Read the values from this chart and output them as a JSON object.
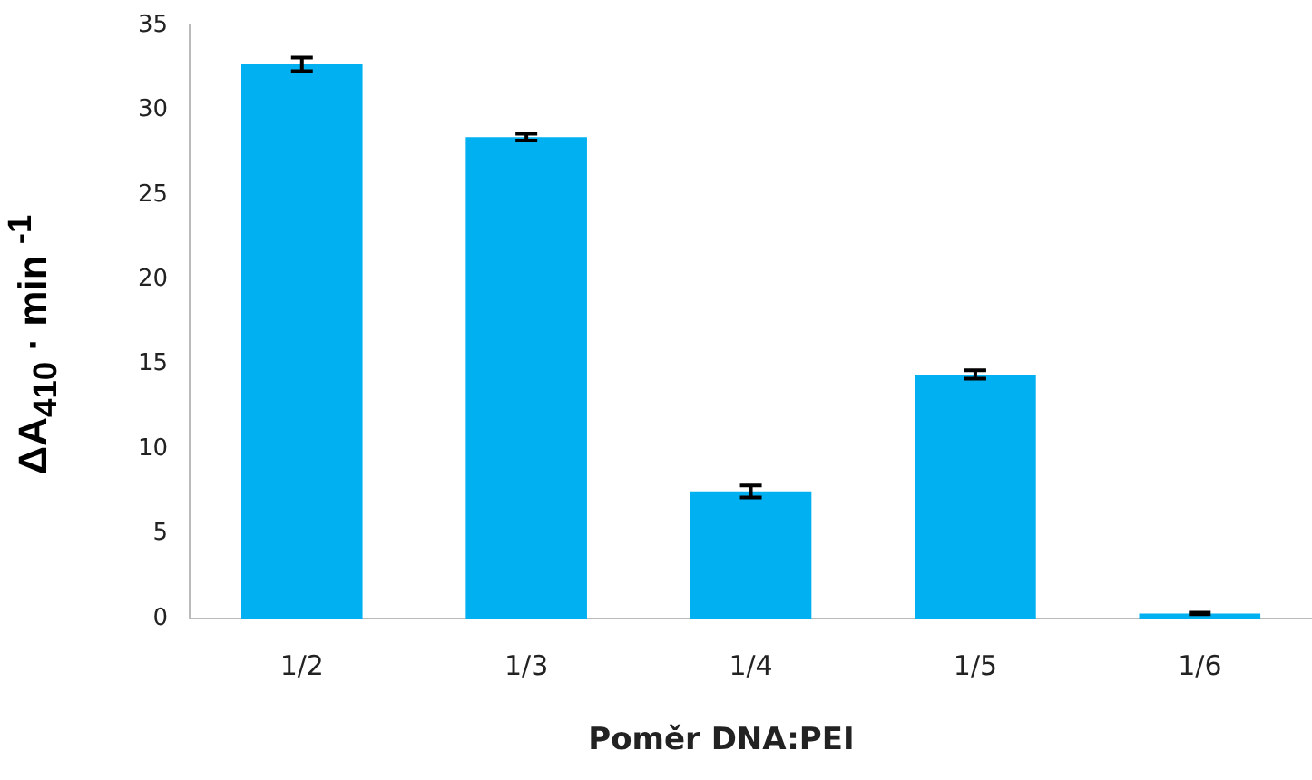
{
  "chart_data": {
    "type": "bar",
    "xlabel": "Poměr DNA:PEI",
    "ylabel": "ΔA$_{410}$ · min $^{-1}$",
    "categories": [
      "1/2",
      "1/3",
      "1/4",
      "1/5",
      "1/6"
    ],
    "values": [
      32.7,
      28.4,
      7.5,
      14.4,
      0.3
    ],
    "errors": [
      0.4,
      0.2,
      0.35,
      0.25,
      0.05
    ],
    "color": "#00b0f0",
    "ylim": [
      0,
      35
    ],
    "yticks": [
      0,
      5,
      10,
      15,
      20,
      25,
      30,
      35
    ],
    "grid": false,
    "legend": false
  }
}
